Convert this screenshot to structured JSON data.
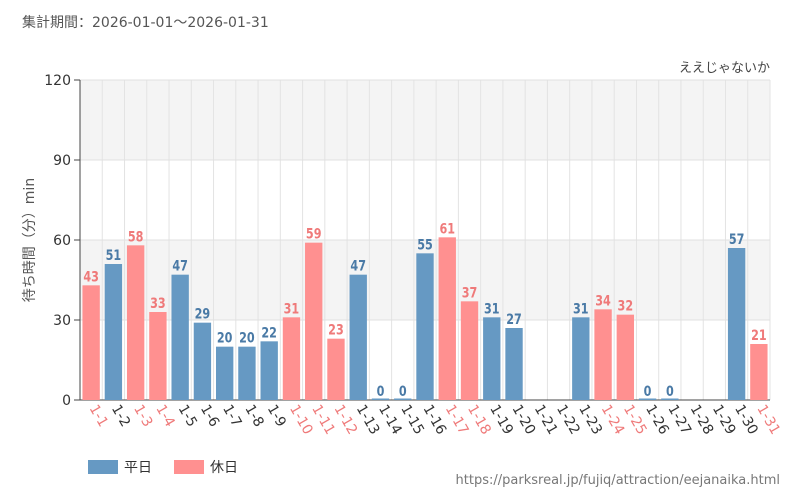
{
  "header": {
    "period": "集計期間：2026-01-01～2026-01-31"
  },
  "footer": {
    "source": "https://parksreal.jp/fujiq/attraction/eejanaika.html"
  },
  "chart_data": {
    "type": "bar",
    "title": "ええじゃないか",
    "ylabel": "待ち時間（分）min",
    "xlabel": "",
    "ylim": [
      0,
      120
    ],
    "yticks": [
      0,
      30,
      60,
      90,
      120
    ],
    "categories": [
      "1-1",
      "1-2",
      "1-3",
      "1-4",
      "1-5",
      "1-6",
      "1-7",
      "1-8",
      "1-9",
      "1-10",
      "1-11",
      "1-12",
      "1-13",
      "1-14",
      "1-15",
      "1-16",
      "1-17",
      "1-18",
      "1-19",
      "1-20",
      "1-21",
      "1-22",
      "1-23",
      "1-24",
      "1-25",
      "1-26",
      "1-27",
      "1-28",
      "1-29",
      "1-30",
      "1-31"
    ],
    "values": [
      43,
      51,
      58,
      33,
      47,
      29,
      20,
      20,
      22,
      31,
      59,
      23,
      47,
      0,
      0,
      55,
      61,
      37,
      31,
      27,
      null,
      null,
      31,
      34,
      32,
      0,
      0,
      null,
      null,
      57,
      21
    ],
    "day_type": [
      "holiday",
      "weekday",
      "holiday",
      "holiday",
      "weekday",
      "weekday",
      "weekday",
      "weekday",
      "weekday",
      "holiday",
      "holiday",
      "holiday",
      "weekday",
      "weekday",
      "weekday",
      "weekday",
      "holiday",
      "holiday",
      "weekday",
      "weekday",
      "weekday",
      "weekday",
      "weekday",
      "holiday",
      "holiday",
      "weekday",
      "weekday",
      "weekday",
      "weekday",
      "weekday",
      "holiday"
    ],
    "series": [
      {
        "name": "平日",
        "key": "weekday",
        "color": "#6699c3"
      },
      {
        "name": "休日",
        "key": "holiday",
        "color": "#ff9090"
      }
    ],
    "label_colors": {
      "weekday": "#4a7aa6",
      "holiday": "#ef7a7a"
    }
  }
}
